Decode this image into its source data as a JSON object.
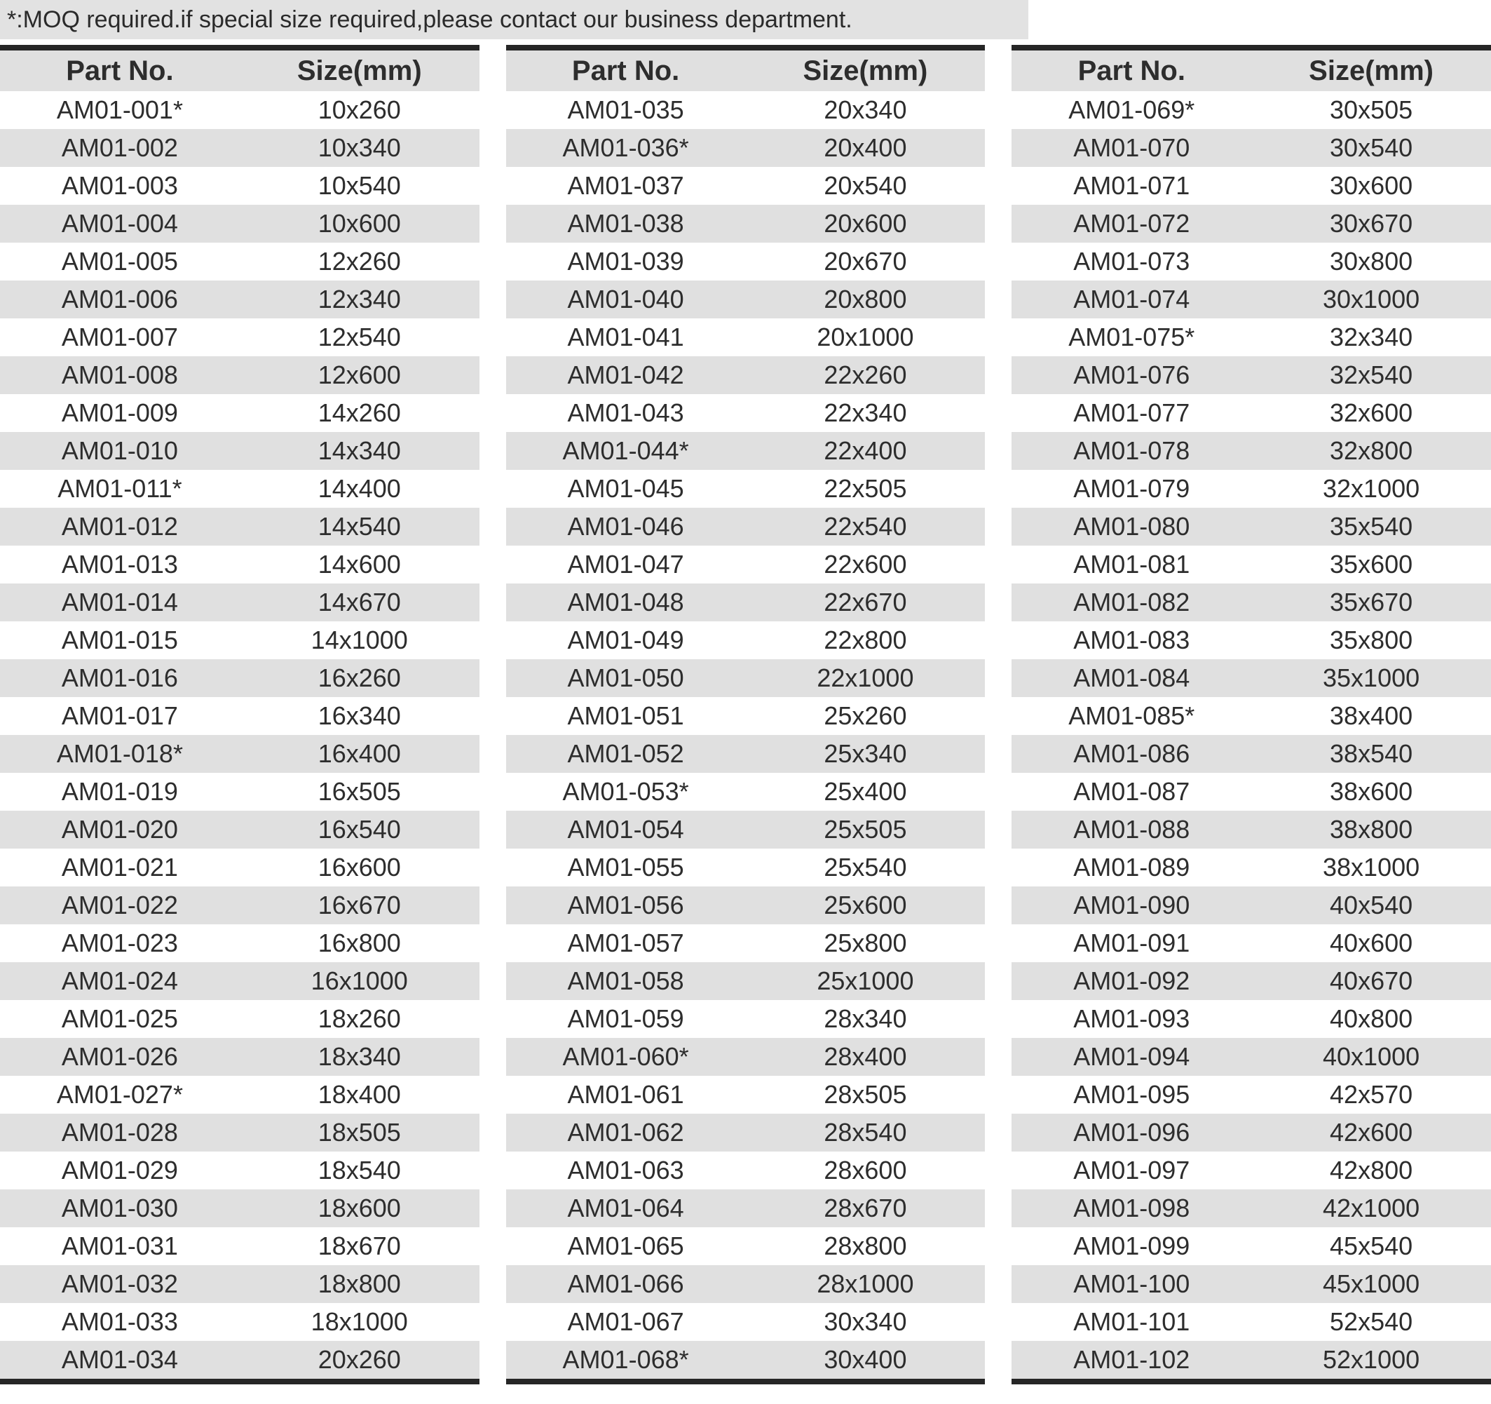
{
  "note": {
    "text": "*:MOQ required.if special size required,please contact our business department."
  },
  "columns": {
    "part_no": "Part No.",
    "size": "Size(mm)"
  },
  "colors": {
    "stripe": "#e0e0e0",
    "header_bg": "#e0e0e0",
    "border": "#262626",
    "text": "#2d2d2d",
    "note_bg": "#e2e2e2"
  },
  "tables": [
    {
      "rows": [
        {
          "part": "AM01-001*",
          "size": "10x260"
        },
        {
          "part": "AM01-002",
          "size": "10x340"
        },
        {
          "part": "AM01-003",
          "size": "10x540"
        },
        {
          "part": "AM01-004",
          "size": "10x600"
        },
        {
          "part": "AM01-005",
          "size": "12x260"
        },
        {
          "part": "AM01-006",
          "size": "12x340"
        },
        {
          "part": "AM01-007",
          "size": "12x540"
        },
        {
          "part": "AM01-008",
          "size": "12x600"
        },
        {
          "part": "AM01-009",
          "size": "14x260"
        },
        {
          "part": "AM01-010",
          "size": "14x340"
        },
        {
          "part": "AM01-011*",
          "size": "14x400"
        },
        {
          "part": "AM01-012",
          "size": "14x540"
        },
        {
          "part": "AM01-013",
          "size": "14x600"
        },
        {
          "part": "AM01-014",
          "size": "14x670"
        },
        {
          "part": "AM01-015",
          "size": "14x1000"
        },
        {
          "part": "AM01-016",
          "size": "16x260"
        },
        {
          "part": "AM01-017",
          "size": "16x340"
        },
        {
          "part": "AM01-018*",
          "size": "16x400"
        },
        {
          "part": "AM01-019",
          "size": "16x505"
        },
        {
          "part": "AM01-020",
          "size": "16x540"
        },
        {
          "part": "AM01-021",
          "size": "16x600"
        },
        {
          "part": "AM01-022",
          "size": "16x670"
        },
        {
          "part": "AM01-023",
          "size": "16x800"
        },
        {
          "part": "AM01-024",
          "size": "16x1000"
        },
        {
          "part": "AM01-025",
          "size": "18x260"
        },
        {
          "part": "AM01-026",
          "size": "18x340"
        },
        {
          "part": "AM01-027*",
          "size": "18x400"
        },
        {
          "part": "AM01-028",
          "size": "18x505"
        },
        {
          "part": "AM01-029",
          "size": "18x540"
        },
        {
          "part": "AM01-030",
          "size": "18x600"
        },
        {
          "part": "AM01-031",
          "size": "18x670"
        },
        {
          "part": "AM01-032",
          "size": "18x800"
        },
        {
          "part": "AM01-033",
          "size": "18x1000"
        },
        {
          "part": "AM01-034",
          "size": "20x260"
        }
      ]
    },
    {
      "rows": [
        {
          "part": "AM01-035",
          "size": "20x340"
        },
        {
          "part": "AM01-036*",
          "size": "20x400"
        },
        {
          "part": "AM01-037",
          "size": "20x540"
        },
        {
          "part": "AM01-038",
          "size": "20x600"
        },
        {
          "part": "AM01-039",
          "size": "20x670"
        },
        {
          "part": "AM01-040",
          "size": "20x800"
        },
        {
          "part": "AM01-041",
          "size": "20x1000"
        },
        {
          "part": "AM01-042",
          "size": "22x260"
        },
        {
          "part": "AM01-043",
          "size": "22x340"
        },
        {
          "part": "AM01-044*",
          "size": "22x400"
        },
        {
          "part": "AM01-045",
          "size": "22x505"
        },
        {
          "part": "AM01-046",
          "size": "22x540"
        },
        {
          "part": "AM01-047",
          "size": "22x600"
        },
        {
          "part": "AM01-048",
          "size": "22x670"
        },
        {
          "part": "AM01-049",
          "size": "22x800"
        },
        {
          "part": "AM01-050",
          "size": "22x1000"
        },
        {
          "part": "AM01-051",
          "size": "25x260"
        },
        {
          "part": "AM01-052",
          "size": "25x340"
        },
        {
          "part": "AM01-053*",
          "size": "25x400"
        },
        {
          "part": "AM01-054",
          "size": "25x505"
        },
        {
          "part": "AM01-055",
          "size": "25x540"
        },
        {
          "part": "AM01-056",
          "size": "25x600"
        },
        {
          "part": "AM01-057",
          "size": "25x800"
        },
        {
          "part": "AM01-058",
          "size": "25x1000"
        },
        {
          "part": "AM01-059",
          "size": "28x340"
        },
        {
          "part": "AM01-060*",
          "size": "28x400"
        },
        {
          "part": "AM01-061",
          "size": "28x505"
        },
        {
          "part": "AM01-062",
          "size": "28x540"
        },
        {
          "part": "AM01-063",
          "size": "28x600"
        },
        {
          "part": "AM01-064",
          "size": "28x670"
        },
        {
          "part": "AM01-065",
          "size": "28x800"
        },
        {
          "part": "AM01-066",
          "size": "28x1000"
        },
        {
          "part": "AM01-067",
          "size": "30x340"
        },
        {
          "part": "AM01-068*",
          "size": "30x400"
        }
      ]
    },
    {
      "rows": [
        {
          "part": "AM01-069*",
          "size": "30x505"
        },
        {
          "part": "AM01-070",
          "size": "30x540"
        },
        {
          "part": "AM01-071",
          "size": "30x600"
        },
        {
          "part": "AM01-072",
          "size": "30x670"
        },
        {
          "part": "AM01-073",
          "size": "30x800"
        },
        {
          "part": "AM01-074",
          "size": "30x1000"
        },
        {
          "part": "AM01-075*",
          "size": "32x340"
        },
        {
          "part": "AM01-076",
          "size": "32x540"
        },
        {
          "part": "AM01-077",
          "size": "32x600"
        },
        {
          "part": "AM01-078",
          "size": "32x800"
        },
        {
          "part": "AM01-079",
          "size": "32x1000"
        },
        {
          "part": "AM01-080",
          "size": "35x540"
        },
        {
          "part": "AM01-081",
          "size": "35x600"
        },
        {
          "part": "AM01-082",
          "size": "35x670"
        },
        {
          "part": "AM01-083",
          "size": "35x800"
        },
        {
          "part": "AM01-084",
          "size": "35x1000"
        },
        {
          "part": "AM01-085*",
          "size": "38x400"
        },
        {
          "part": "AM01-086",
          "size": "38x540"
        },
        {
          "part": "AM01-087",
          "size": "38x600"
        },
        {
          "part": "AM01-088",
          "size": "38x800"
        },
        {
          "part": "AM01-089",
          "size": "38x1000"
        },
        {
          "part": "AM01-090",
          "size": "40x540"
        },
        {
          "part": "AM01-091",
          "size": "40x600"
        },
        {
          "part": "AM01-092",
          "size": "40x670"
        },
        {
          "part": "AM01-093",
          "size": "40x800"
        },
        {
          "part": "AM01-094",
          "size": "40x1000"
        },
        {
          "part": "AM01-095",
          "size": "42x570"
        },
        {
          "part": "AM01-096",
          "size": "42x600"
        },
        {
          "part": "AM01-097",
          "size": "42x800"
        },
        {
          "part": "AM01-098",
          "size": "42x1000"
        },
        {
          "part": "AM01-099",
          "size": "45x540"
        },
        {
          "part": "AM01-100",
          "size": "45x1000"
        },
        {
          "part": "AM01-101",
          "size": "52x540"
        },
        {
          "part": "AM01-102",
          "size": "52x1000"
        }
      ]
    }
  ]
}
